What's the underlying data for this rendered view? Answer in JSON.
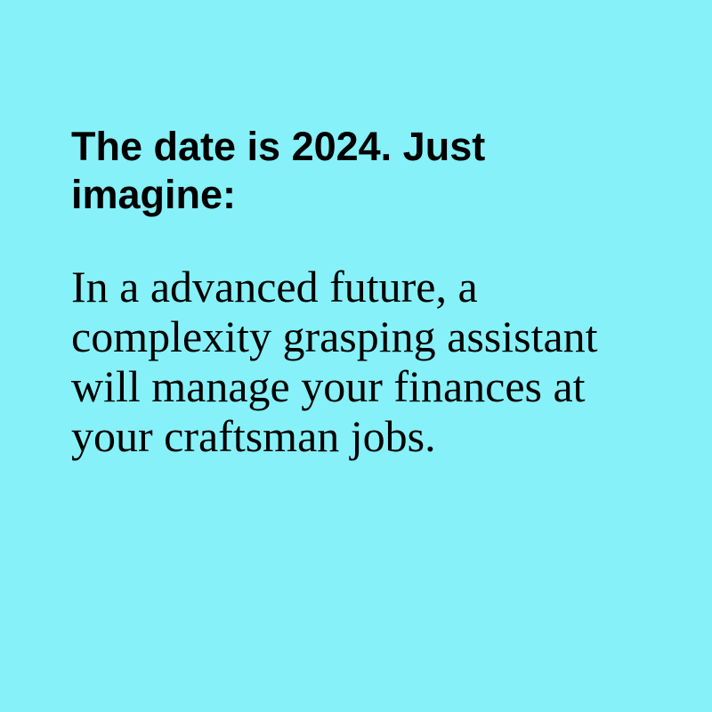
{
  "card": {
    "background_color": "#86f1f9",
    "text_color": "#000000",
    "headline": "The date is 2024. Just imagine:",
    "body": "In a advanced future, a complexity grasping assistant will manage your finances at your craftsman jobs."
  }
}
